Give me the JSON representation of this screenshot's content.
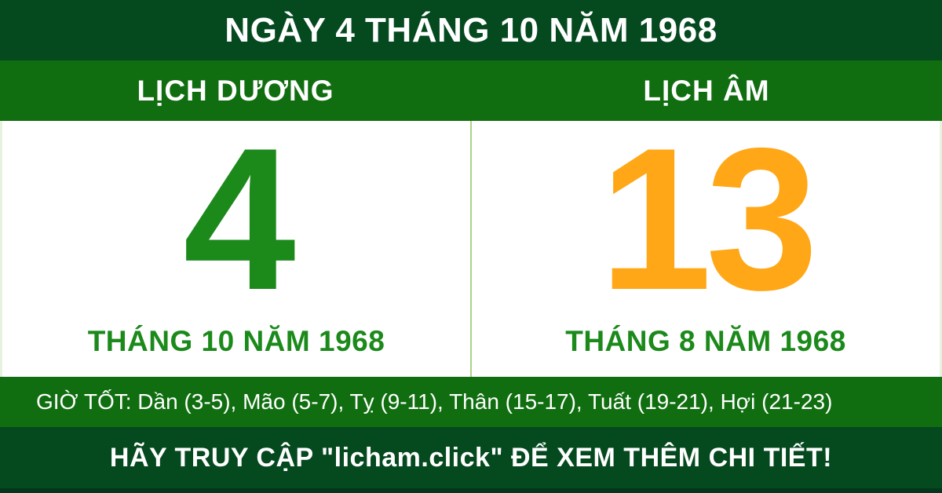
{
  "header": {
    "title": "NGÀY 4 THÁNG 10 NĂM 1968"
  },
  "calendar": {
    "solar": {
      "label": "LỊCH DƯƠNG",
      "day": "4",
      "month_year": "THÁNG 10 NĂM 1968"
    },
    "lunar": {
      "label": "LỊCH ÂM",
      "day": "13",
      "month_year": "THÁNG 8 NĂM 1968"
    }
  },
  "good_hours": {
    "text": "GIỜ TỐT: Dần (3-5), Mão (5-7), Tỵ (9-11), Thân (15-17), Tuất (19-21), Hợi (21-23)"
  },
  "footer": {
    "text": "HÃY TRUY CẬP \"licham.click\" ĐỂ XEM THÊM CHI TIẾT!"
  },
  "colors": {
    "dark_green": "#05491f",
    "band_green": "#106e10",
    "day_green": "#1b8a1b",
    "day_orange": "#ffa717",
    "divider_light_green": "#aad38b",
    "text_white": "#ffffff"
  }
}
